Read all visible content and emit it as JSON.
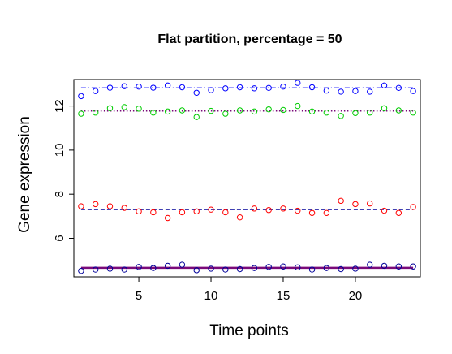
{
  "chart_data": {
    "type": "scatter",
    "title": "Flat partition, percentage = 50",
    "xlabel": "Time points",
    "ylabel": "Gene expression",
    "xlim": [
      0.5,
      24.5
    ],
    "ylim": [
      4.25,
      13.2
    ],
    "xticks": [
      5,
      10,
      15,
      20
    ],
    "yticks": [
      6,
      8,
      10,
      12
    ],
    "grid": false,
    "legend": "none",
    "x": [
      1,
      2,
      3,
      4,
      5,
      6,
      7,
      8,
      9,
      10,
      11,
      12,
      13,
      14,
      15,
      16,
      17,
      18,
      19,
      20,
      21,
      22,
      23,
      24
    ],
    "series": [
      {
        "color": "#0000ff",
        "values": [
          12.45,
          12.68,
          12.83,
          12.9,
          12.88,
          12.83,
          12.93,
          12.85,
          12.6,
          12.72,
          12.8,
          12.85,
          12.8,
          12.82,
          12.88,
          13.05,
          12.85,
          12.7,
          12.65,
          12.68,
          12.65,
          12.93,
          12.82,
          12.68
        ],
        "trend": {
          "value": 12.82,
          "color": "#0000ff",
          "dash": "6,3,1,3",
          "width": 1.3
        }
      },
      {
        "color": "#00cc00",
        "values": [
          11.65,
          11.7,
          11.9,
          11.95,
          11.88,
          11.7,
          11.75,
          11.8,
          11.5,
          11.78,
          11.65,
          11.8,
          11.75,
          11.85,
          11.82,
          12.0,
          11.75,
          11.7,
          11.55,
          11.68,
          11.7,
          11.9,
          11.8,
          11.7
        ],
        "trend": {
          "value": 11.78,
          "color": "#7a0a7a",
          "dash": "1.5,2.5",
          "width": 2
        }
      },
      {
        "color": "#ff0000",
        "values": [
          7.45,
          7.55,
          7.45,
          7.38,
          7.22,
          7.18,
          6.92,
          7.18,
          7.22,
          7.3,
          7.18,
          6.95,
          7.35,
          7.28,
          7.35,
          7.25,
          7.15,
          7.15,
          7.7,
          7.55,
          7.58,
          7.25,
          7.15,
          7.42
        ],
        "trend": {
          "value": 7.3,
          "color": "#000099",
          "dash": "5,3",
          "width": 1.2
        }
      },
      {
        "color": "#000099",
        "values": [
          4.52,
          4.58,
          4.62,
          4.58,
          4.7,
          4.65,
          4.75,
          4.8,
          4.55,
          4.62,
          4.58,
          4.6,
          4.65,
          4.7,
          4.72,
          4.68,
          4.58,
          4.65,
          4.6,
          4.62,
          4.8,
          4.75,
          4.72,
          4.72
        ],
        "trend": {
          "value": 4.66,
          "color": "#7a0a7a",
          "dash": "",
          "width": 2.4
        }
      }
    ]
  }
}
